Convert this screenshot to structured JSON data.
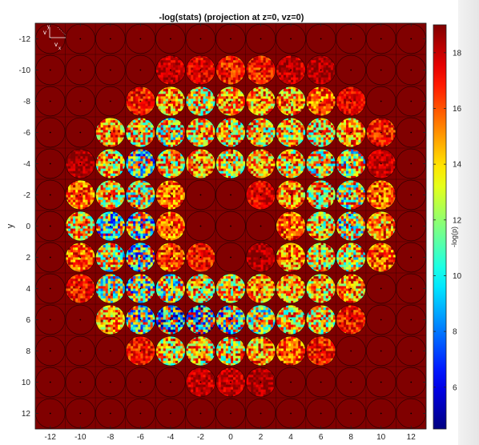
{
  "chart_data": {
    "type": "heatmap",
    "title": "-log(stats) (projection at z=0, vz=0)",
    "xlabel": "",
    "ylabel": "y",
    "colorbar_label": "-log(p)",
    "xlim": [
      -13,
      13
    ],
    "ylim": [
      -13,
      13
    ],
    "y_reversed": true,
    "x_ticks": [
      -12,
      -10,
      -8,
      -6,
      -4,
      -2,
      0,
      2,
      4,
      6,
      8,
      10,
      12
    ],
    "y_ticks": [
      -12,
      -10,
      -8,
      -6,
      -4,
      -2,
      0,
      2,
      4,
      6,
      8,
      10,
      12
    ],
    "colorbar_ticks": [
      6,
      8,
      10,
      12,
      14,
      16,
      18
    ],
    "color_range": [
      4.5,
      19
    ],
    "colormap": "jet",
    "grid": "circle-per-cell",
    "inset_axes": {
      "vertical": "v",
      "vertical_sub": "y",
      "horizontal": "v",
      "horizontal_sub": "x"
    },
    "cell_centers_x": [
      -12,
      -10,
      -8,
      -6,
      -4,
      -2,
      0,
      2,
      4,
      6,
      8,
      10,
      12
    ],
    "cell_centers_y": [
      -12,
      -10,
      -8,
      -6,
      -4,
      -2,
      0,
      2,
      4,
      6,
      8,
      10,
      12
    ],
    "cell_mean_values": [
      [
        19,
        19,
        19,
        19,
        19,
        19,
        19,
        19,
        19,
        19,
        19,
        19,
        19
      ],
      [
        19,
        19,
        19,
        19,
        18,
        17.5,
        17,
        17,
        18,
        18.5,
        19,
        19,
        19
      ],
      [
        19,
        19,
        19,
        17,
        15,
        14,
        15,
        15,
        15,
        16,
        17.5,
        19,
        19
      ],
      [
        19,
        19,
        15,
        14,
        13,
        14,
        14,
        14,
        14,
        14,
        15,
        17,
        19
      ],
      [
        19,
        18.5,
        14,
        12,
        14,
        15,
        14,
        15,
        14,
        13.5,
        13,
        18,
        19
      ],
      [
        19,
        16,
        14,
        13,
        16,
        19,
        19,
        17.5,
        15,
        14,
        13,
        16,
        19
      ],
      [
        19,
        14,
        12,
        12,
        16,
        19,
        19,
        19,
        16,
        14,
        12.5,
        15,
        19
      ],
      [
        19,
        16,
        13,
        12,
        16,
        17,
        19,
        18.5,
        15.5,
        14,
        13.5,
        16,
        19
      ],
      [
        19,
        17,
        13,
        12,
        13,
        14,
        14,
        15,
        15,
        14.5,
        15,
        19,
        19
      ],
      [
        19,
        19,
        15,
        12,
        11,
        11,
        12,
        13,
        14,
        14,
        17,
        19,
        19
      ],
      [
        19,
        19,
        19,
        17,
        14,
        14,
        14,
        15,
        16,
        17,
        19,
        19,
        19
      ],
      [
        19,
        19,
        19,
        19,
        19,
        18,
        18,
        18.5,
        19,
        19,
        19,
        19,
        19
      ],
      [
        19,
        19,
        19,
        19,
        19,
        19,
        19,
        19,
        19,
        19,
        19,
        19,
        19
      ]
    ]
  }
}
